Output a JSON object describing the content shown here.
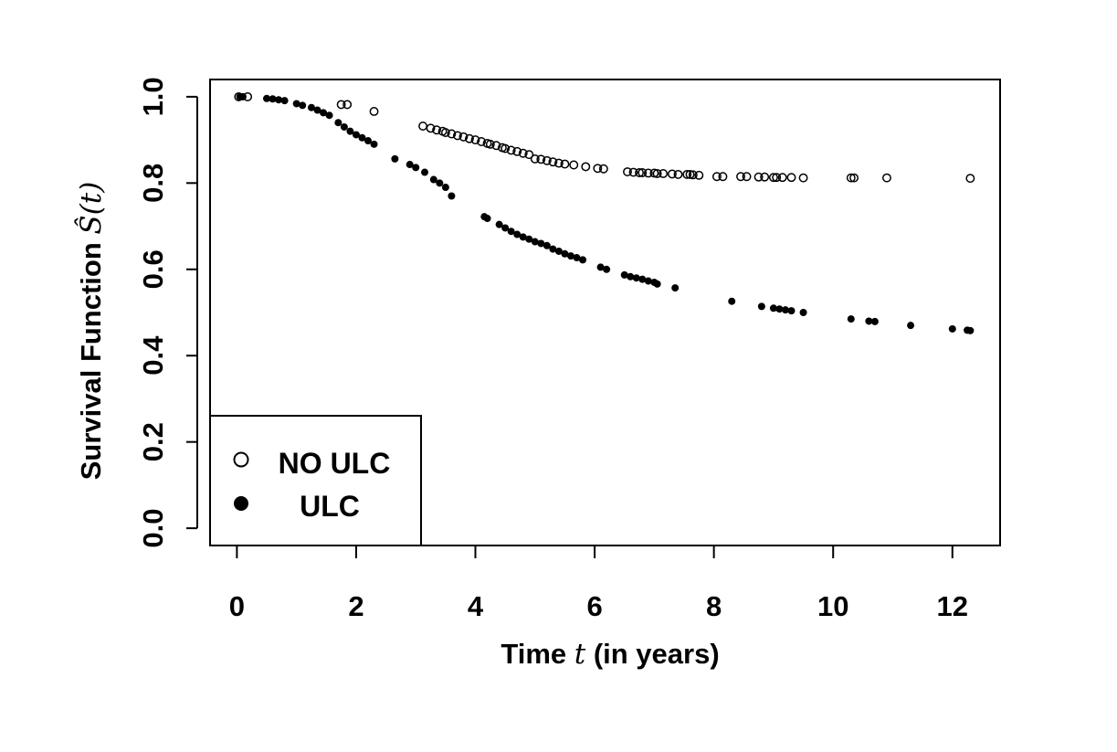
{
  "chart_data": {
    "type": "scatter",
    "xlabel": {
      "pre": "Time ",
      "var": "t",
      "post": " (in years)"
    },
    "ylabel": {
      "pre": "Survival Function ",
      "var": "Ŝ(t)"
    },
    "xlim": [
      -0.45,
      12.8
    ],
    "ylim": [
      -0.04,
      1.04
    ],
    "xticks": [
      0,
      2,
      4,
      6,
      8,
      10,
      12
    ],
    "yticks": [
      0.0,
      0.2,
      0.4,
      0.6,
      0.8,
      1.0
    ],
    "ytick_labels": [
      "0.0",
      "0.2",
      "0.4",
      "0.6",
      "0.8",
      "1.0"
    ],
    "grid": false,
    "legend_position": "bottom-left",
    "series": [
      {
        "name": "NO ULC",
        "marker": "open-circle",
        "x": [
          0.03,
          0.18,
          1.75,
          1.85,
          2.3,
          3.12,
          3.25,
          3.35,
          3.45,
          3.5,
          3.6,
          3.7,
          3.8,
          3.9,
          4.0,
          4.1,
          4.2,
          4.25,
          4.35,
          4.45,
          4.5,
          4.6,
          4.7,
          4.8,
          4.9,
          5.0,
          5.1,
          5.2,
          5.3,
          5.4,
          5.5,
          5.65,
          5.85,
          6.05,
          6.15,
          6.55,
          6.65,
          6.75,
          6.8,
          6.9,
          7.0,
          7.05,
          7.15,
          7.3,
          7.4,
          7.55,
          7.6,
          7.65,
          7.75,
          8.05,
          8.15,
          8.45,
          8.55,
          8.75,
          8.85,
          9.0,
          9.05,
          9.15,
          9.3,
          9.5,
          10.3,
          10.35,
          10.9,
          12.3
        ],
        "y": [
          1.0,
          1.0,
          0.982,
          0.982,
          0.966,
          0.932,
          0.927,
          0.923,
          0.92,
          0.917,
          0.914,
          0.91,
          0.907,
          0.903,
          0.9,
          0.896,
          0.892,
          0.89,
          0.887,
          0.882,
          0.88,
          0.876,
          0.873,
          0.869,
          0.866,
          0.856,
          0.855,
          0.852,
          0.849,
          0.846,
          0.844,
          0.842,
          0.838,
          0.834,
          0.833,
          0.826,
          0.825,
          0.824,
          0.824,
          0.823,
          0.823,
          0.822,
          0.822,
          0.821,
          0.82,
          0.82,
          0.82,
          0.819,
          0.818,
          0.815,
          0.815,
          0.815,
          0.815,
          0.814,
          0.814,
          0.813,
          0.813,
          0.813,
          0.813,
          0.812,
          0.812,
          0.812,
          0.812,
          0.811
        ]
      },
      {
        "name": "ULC",
        "marker": "filled-circle",
        "x": [
          0.05,
          0.1,
          0.5,
          0.6,
          0.7,
          0.8,
          1.0,
          1.1,
          1.25,
          1.35,
          1.45,
          1.55,
          1.7,
          1.8,
          1.9,
          2.0,
          2.1,
          2.2,
          2.3,
          2.65,
          2.9,
          3.0,
          3.15,
          3.3,
          3.4,
          3.5,
          3.6,
          4.15,
          4.2,
          4.4,
          4.5,
          4.6,
          4.7,
          4.8,
          4.9,
          5.0,
          5.1,
          5.2,
          5.3,
          5.4,
          5.5,
          5.6,
          5.7,
          5.8,
          6.1,
          6.2,
          6.5,
          6.6,
          6.7,
          6.8,
          6.9,
          7.0,
          7.05,
          7.35,
          8.3,
          8.8,
          9.0,
          9.1,
          9.2,
          9.3,
          9.5,
          10.3,
          10.6,
          10.7,
          11.3,
          12.0,
          12.25,
          12.3
        ],
        "y": [
          1.0,
          1.0,
          0.996,
          0.995,
          0.993,
          0.991,
          0.984,
          0.98,
          0.975,
          0.969,
          0.963,
          0.957,
          0.94,
          0.93,
          0.92,
          0.912,
          0.905,
          0.898,
          0.89,
          0.856,
          0.843,
          0.836,
          0.825,
          0.808,
          0.8,
          0.79,
          0.77,
          0.722,
          0.718,
          0.704,
          0.696,
          0.688,
          0.681,
          0.675,
          0.67,
          0.664,
          0.66,
          0.655,
          0.647,
          0.642,
          0.636,
          0.631,
          0.627,
          0.622,
          0.605,
          0.6,
          0.587,
          0.583,
          0.58,
          0.577,
          0.573,
          0.57,
          0.566,
          0.557,
          0.526,
          0.514,
          0.51,
          0.508,
          0.506,
          0.504,
          0.5,
          0.485,
          0.48,
          0.479,
          0.47,
          0.462,
          0.459,
          0.458
        ]
      }
    ]
  }
}
